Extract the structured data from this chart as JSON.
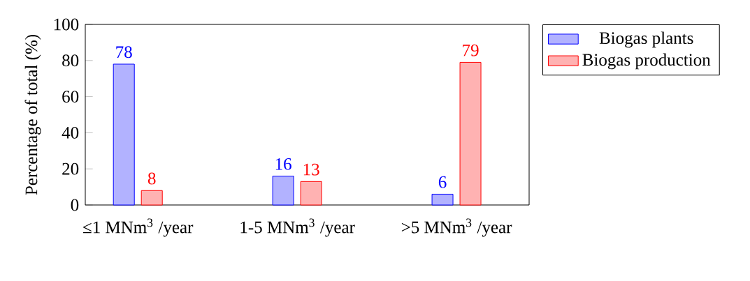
{
  "chart_data": {
    "type": "bar",
    "ylabel": "Percentage of total (%)",
    "categories": [
      "≤1 MNm$^{3}$ /year",
      "1-5 MNm$^{3}$ /year",
      ">5 MNm$^{3}$ /year"
    ],
    "series": [
      {
        "name": "Biogas plants",
        "color": "#0000ff",
        "values": [
          78,
          16,
          6
        ]
      },
      {
        "name": "Biogas production",
        "color": "#ff0000",
        "values": [
          8,
          13,
          79
        ]
      }
    ],
    "ylim": [
      0,
      100
    ],
    "yticks": [
      {
        "value": 0,
        "label": "0"
      },
      {
        "value": 20,
        "label": "20"
      },
      {
        "value": 40,
        "label": "40"
      },
      {
        "value": 60,
        "label": "60"
      },
      {
        "value": 80,
        "label": "80"
      },
      {
        "value": 100,
        "label": "100"
      }
    ],
    "data_labels": true,
    "legend": "top right",
    "grid": false
  }
}
